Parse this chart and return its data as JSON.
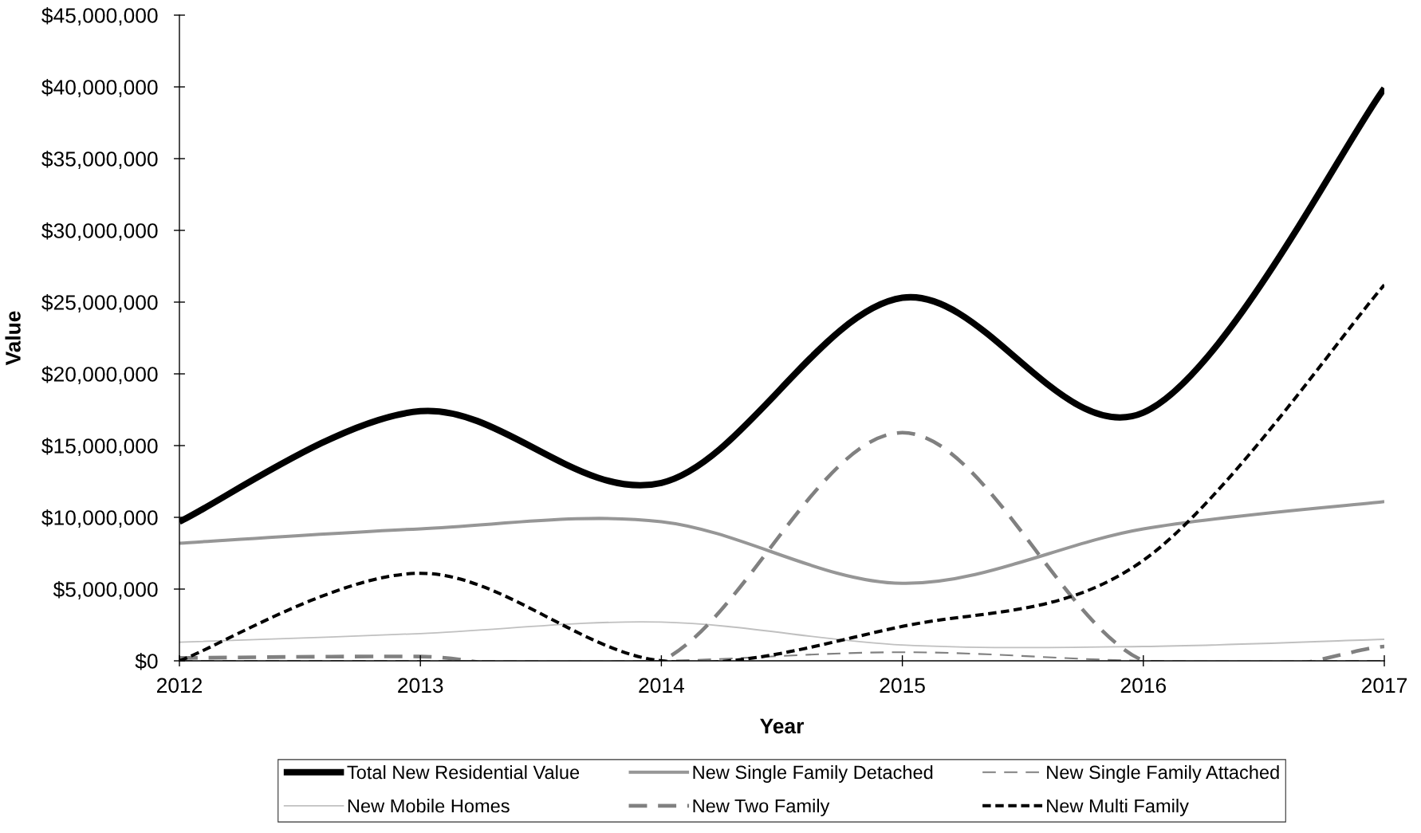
{
  "chart_data": {
    "type": "line",
    "xlabel": "Year",
    "ylabel": "Value",
    "x": [
      2012,
      2013,
      2014,
      2015,
      2016,
      2017
    ],
    "xlim": [
      2012,
      2017
    ],
    "xticks": [
      2012,
      2013,
      2014,
      2015,
      2016,
      2017
    ],
    "ylim": [
      0,
      45000000
    ],
    "yticks": [
      {
        "value": 0,
        "label": "$0"
      },
      {
        "value": 5000000,
        "label": "$5,000,000"
      },
      {
        "value": 10000000,
        "label": "$10,000,000"
      },
      {
        "value": 15000000,
        "label": "$15,000,000"
      },
      {
        "value": 20000000,
        "label": "$20,000,000"
      },
      {
        "value": 25000000,
        "label": "$25,000,000"
      },
      {
        "value": 30000000,
        "label": "$30,000,000"
      },
      {
        "value": 35000000,
        "label": "$35,000,000"
      },
      {
        "value": 40000000,
        "label": "$40,000,000"
      },
      {
        "value": 45000000,
        "label": "$45,000,000"
      }
    ],
    "grid": false,
    "legend": "bottom",
    "series": [
      {
        "name": "Total New Residential Value",
        "color": "#000000",
        "line_style": "solid",
        "values": [
          9700000,
          17400000,
          12400000,
          25300000,
          17300000,
          39900000
        ]
      },
      {
        "name": "New Single Family Detached",
        "color": "#969696",
        "line_style": "solid",
        "values": [
          8200000,
          9200000,
          9700000,
          5400000,
          9200000,
          11100000
        ]
      },
      {
        "name": "New Single Family Attached",
        "color": "#808080",
        "line_style": "dashed",
        "values": [
          0,
          0,
          0,
          600000,
          0,
          0
        ]
      },
      {
        "name": "New Mobile Homes",
        "color": "#c0c0c0",
        "line_style": "solid",
        "values": [
          1300000,
          1900000,
          2700000,
          1100000,
          1000000,
          1500000
        ]
      },
      {
        "name": "New Two Family",
        "color": "#808080",
        "line_style": "dashed",
        "values": [
          200000,
          300000,
          0,
          15900000,
          0,
          1000000
        ]
      },
      {
        "name": "New Multi Family",
        "color": "#000000",
        "line_style": "dashed",
        "values": [
          0,
          6100000,
          0,
          2400000,
          7000000,
          26200000
        ]
      }
    ]
  }
}
